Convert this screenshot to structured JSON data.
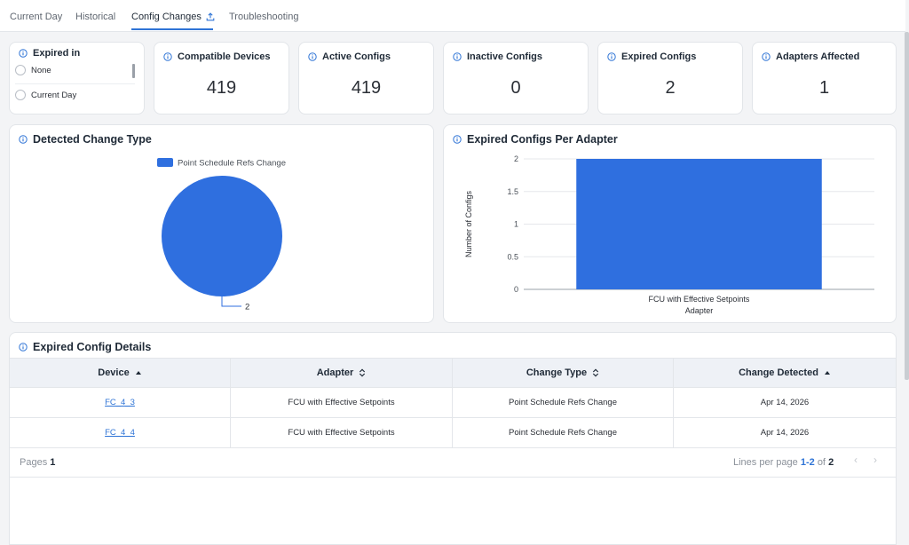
{
  "tabs": [
    {
      "label": "Current Day"
    },
    {
      "label": "Historical"
    },
    {
      "label": "Config Changes"
    },
    {
      "label": "Troubleshooting"
    }
  ],
  "filter": {
    "title": "Expired in",
    "options": [
      "None",
      "Current Day"
    ]
  },
  "stats": [
    {
      "title": "Compatible Devices",
      "value": "419"
    },
    {
      "title": "Active Configs",
      "value": "419"
    },
    {
      "title": "Inactive Configs",
      "value": "0"
    },
    {
      "title": "Expired Configs",
      "value": "2"
    },
    {
      "title": "Adapters Affected",
      "value": "1"
    }
  ],
  "pie_card": {
    "title": "Detected Change Type"
  },
  "bar_card": {
    "title": "Expired Configs Per Adapter"
  },
  "chart_data": [
    {
      "type": "pie",
      "legend": [
        "Point Schedule Refs Change"
      ],
      "values": [
        2
      ],
      "labels": [
        "2"
      ],
      "colors": [
        "#2f6fdf"
      ]
    },
    {
      "type": "bar",
      "categories": [
        "FCU with Effective Setpoints"
      ],
      "values": [
        2
      ],
      "xlabel": "Adapter",
      "ylabel": "Number of Configs",
      "yticks": [
        "0",
        "0.5",
        "1",
        "1.5",
        "2"
      ],
      "ylim": [
        0,
        2
      ],
      "colors": [
        "#2f6fdf"
      ]
    }
  ],
  "table": {
    "title": "Expired Config Details",
    "columns": [
      "Device",
      "Adapter",
      "Change Type",
      "Change Detected"
    ],
    "rows": [
      [
        "FC_4_3",
        "FCU with Effective Setpoints",
        "Point Schedule Refs Change",
        "Apr 14, 2026"
      ],
      [
        "FC_4_4",
        "FCU with Effective Setpoints",
        "Point Schedule Refs Change",
        "Apr 14, 2026"
      ]
    ],
    "footer": {
      "pages_label": "Pages",
      "pages_value": "1",
      "lines_label": "Lines per page",
      "range": "1-2",
      "of_label": "of",
      "total": "2"
    }
  },
  "colors": {
    "accent": "#2f74d6",
    "series": "#2f6fdf"
  }
}
